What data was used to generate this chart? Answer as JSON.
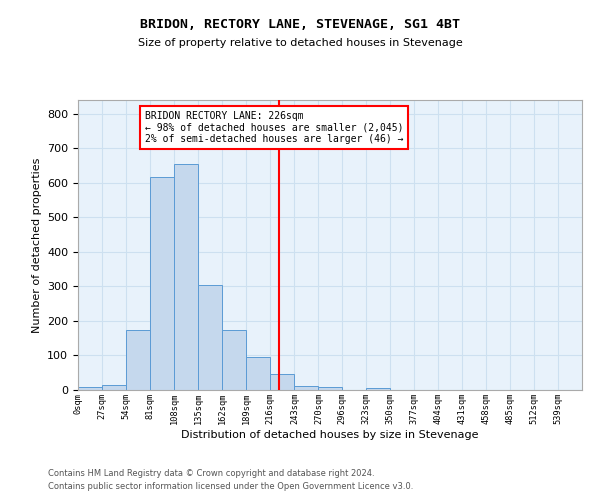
{
  "title": "BRIDON, RECTORY LANE, STEVENAGE, SG1 4BT",
  "subtitle": "Size of property relative to detached houses in Stevenage",
  "xlabel": "Distribution of detached houses by size in Stevenage",
  "ylabel": "Number of detached properties",
  "bar_labels": [
    "0sqm",
    "27sqm",
    "54sqm",
    "81sqm",
    "108sqm",
    "135sqm",
    "162sqm",
    "189sqm",
    "216sqm",
    "243sqm",
    "270sqm",
    "296sqm",
    "323sqm",
    "350sqm",
    "377sqm",
    "404sqm",
    "431sqm",
    "458sqm",
    "485sqm",
    "512sqm",
    "539sqm"
  ],
  "hist_values": [
    8,
    15,
    175,
    618,
    655,
    305,
    175,
    97,
    45,
    13,
    10,
    0,
    5,
    0,
    0,
    0,
    0,
    0,
    0,
    0,
    0
  ],
  "bin_edges": [
    0,
    27,
    54,
    81,
    108,
    135,
    162,
    189,
    216,
    243,
    270,
    296,
    323,
    350,
    377,
    404,
    431,
    458,
    485,
    512,
    539,
    566
  ],
  "property_size": 226,
  "annotation_title": "BRIDON RECTORY LANE: 226sqm",
  "annotation_line1": "← 98% of detached houses are smaller (2,045)",
  "annotation_line2": "2% of semi-detached houses are larger (46) →",
  "bar_color": "#c5d8ed",
  "bar_edge_color": "#5b9bd5",
  "vline_color": "red",
  "annotation_box_color": "red",
  "grid_color": "#cde0f0",
  "bg_color": "#e8f2fb",
  "ylim": [
    0,
    840
  ],
  "yticks": [
    0,
    100,
    200,
    300,
    400,
    500,
    600,
    700,
    800
  ],
  "footer1": "Contains HM Land Registry data © Crown copyright and database right 2024.",
  "footer2": "Contains public sector information licensed under the Open Government Licence v3.0."
}
